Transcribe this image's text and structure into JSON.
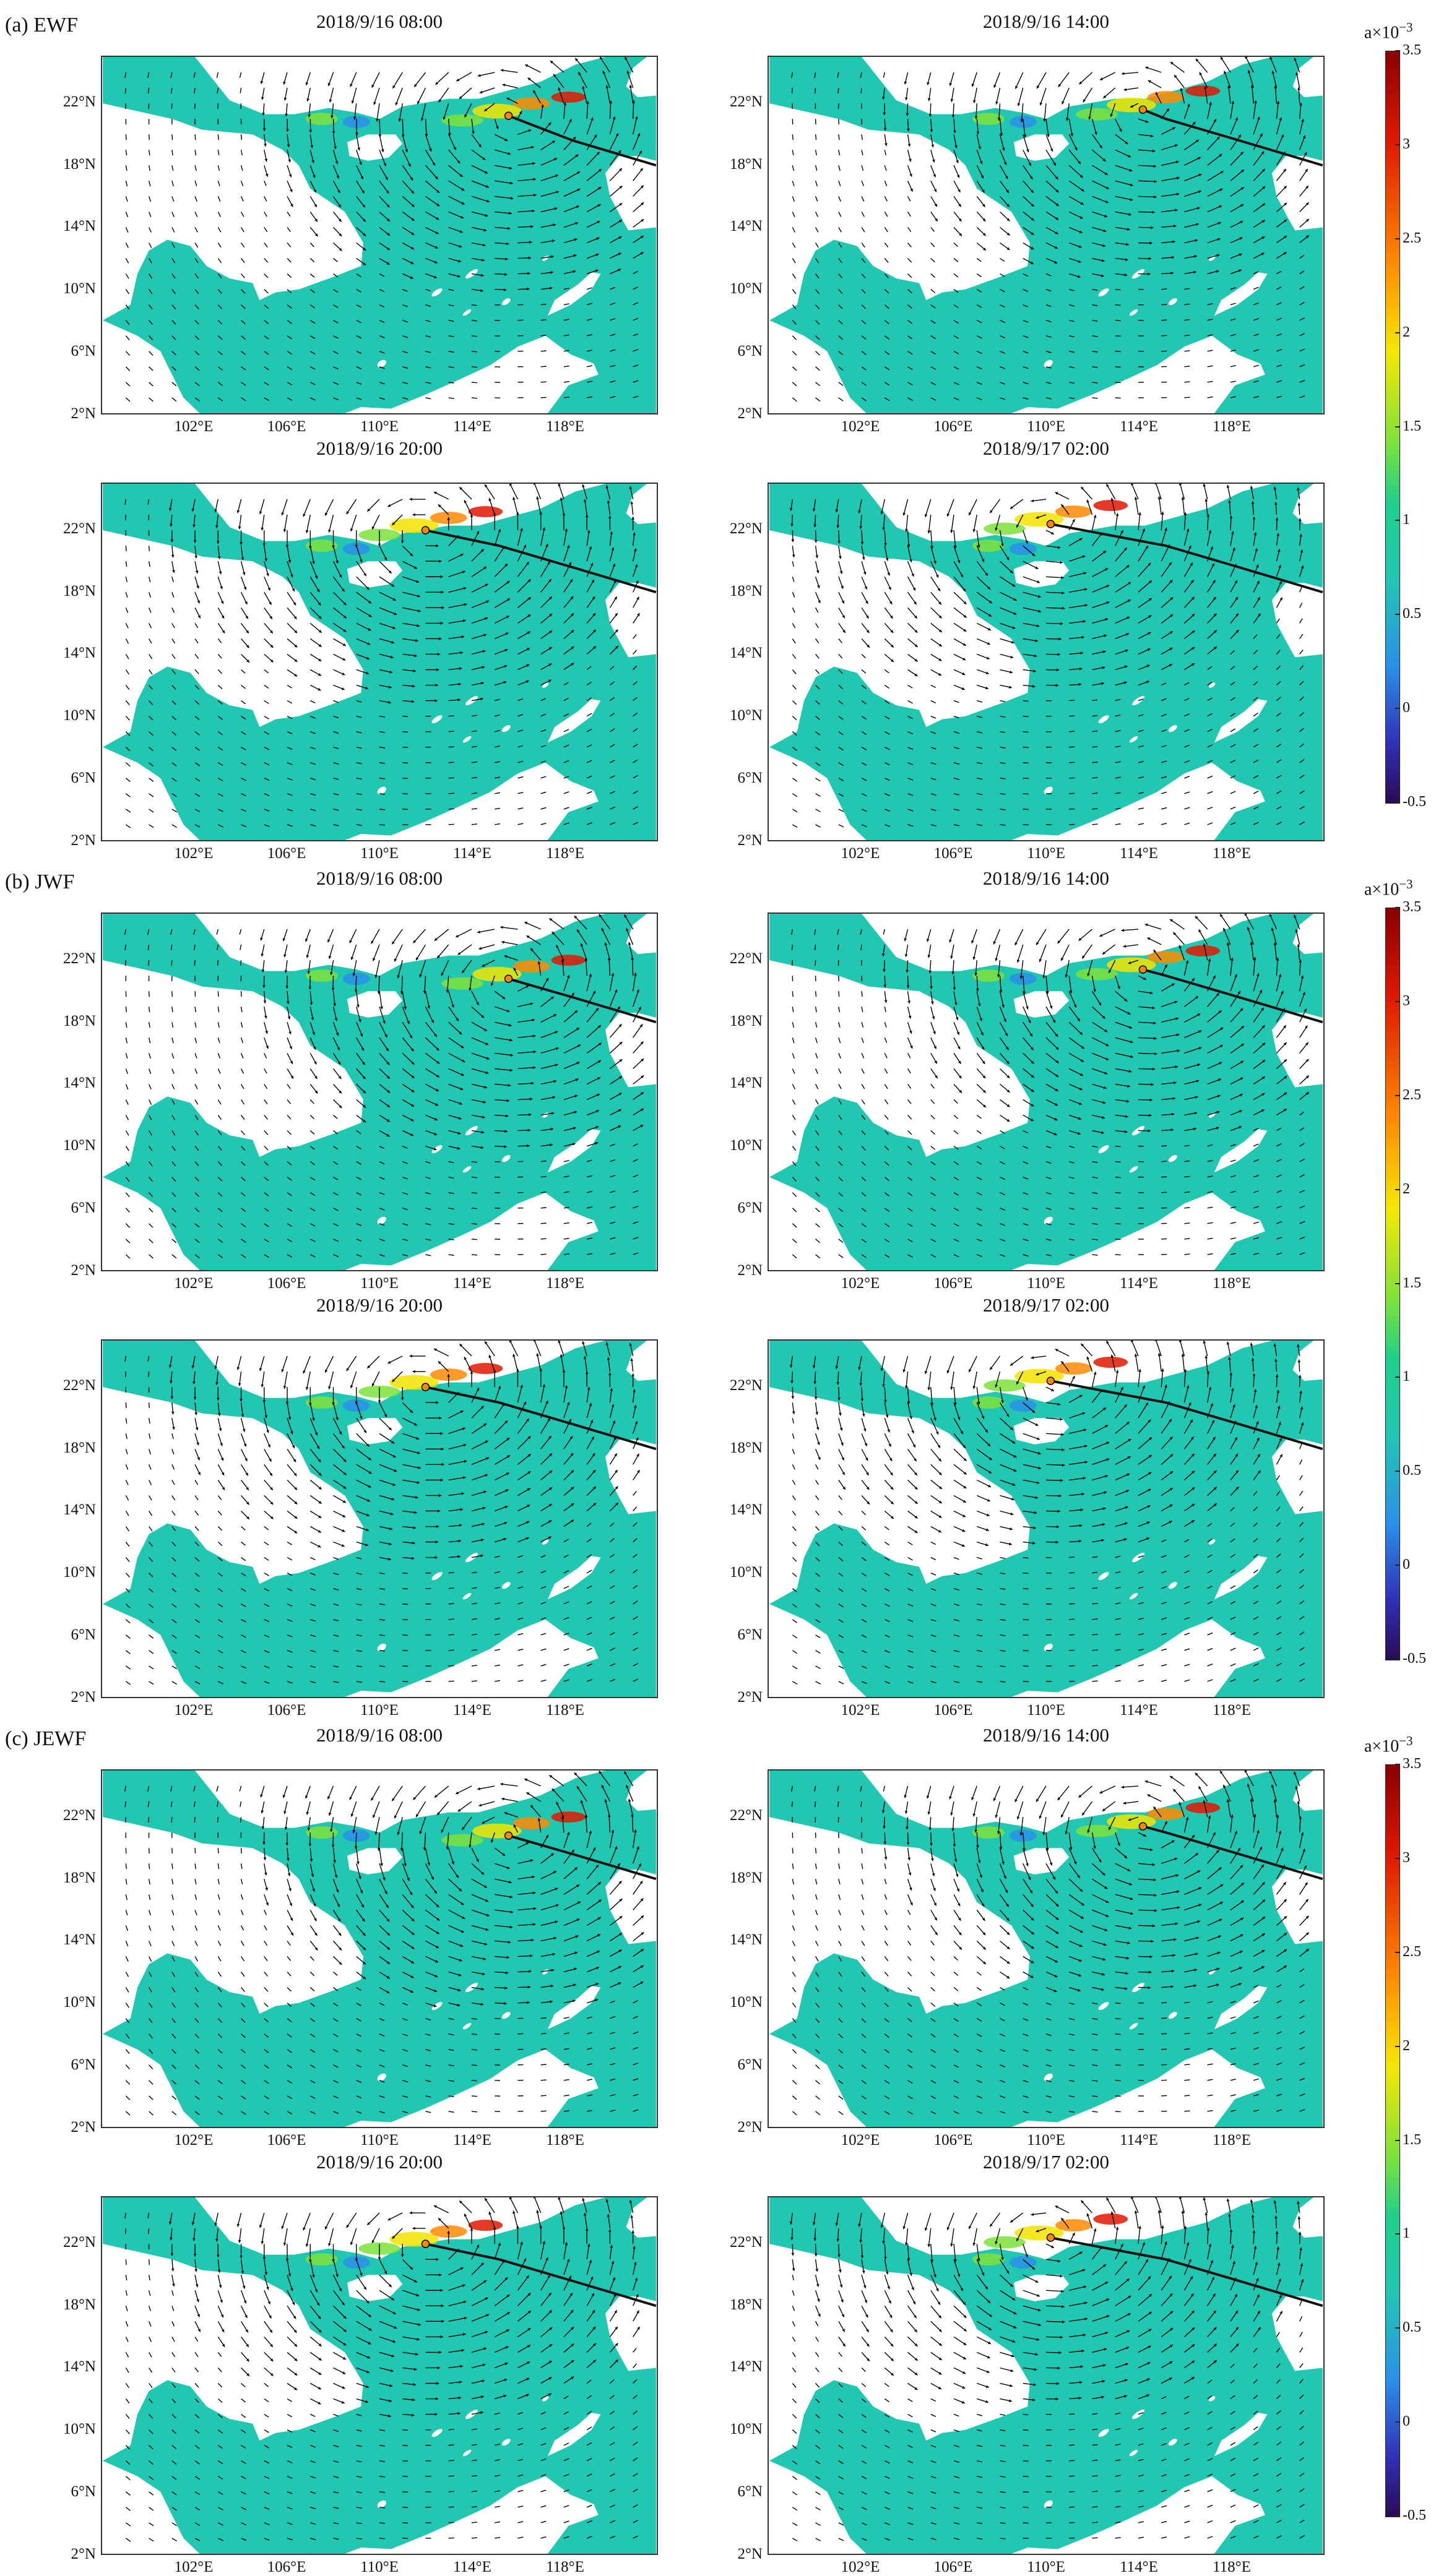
{
  "groups": [
    {
      "label": "(a) EWF",
      "panels": [
        {
          "title": "2018/9/16 08:00",
          "storm": [
            115.6,
            21.2
          ]
        },
        {
          "title": "2018/9/16 14:00",
          "storm": [
            114.2,
            21.6
          ]
        },
        {
          "title": "2018/9/16 20:00",
          "storm": [
            112.0,
            22.0
          ]
        },
        {
          "title": "2018/9/17 02:00",
          "storm": [
            110.2,
            22.4
          ]
        }
      ]
    },
    {
      "label": "(b) JWF",
      "panels": [
        {
          "title": "2018/9/16 08:00",
          "storm": [
            115.6,
            20.8
          ]
        },
        {
          "title": "2018/9/16 14:00",
          "storm": [
            114.2,
            21.4
          ]
        },
        {
          "title": "2018/9/16 20:00",
          "storm": [
            112.0,
            22.0
          ]
        },
        {
          "title": "2018/9/17 02:00",
          "storm": [
            110.2,
            22.4
          ]
        }
      ]
    },
    {
      "label": "(c) JEWF",
      "panels": [
        {
          "title": "2018/9/16 08:00",
          "storm": [
            115.6,
            20.8
          ]
        },
        {
          "title": "2018/9/16 14:00",
          "storm": [
            114.2,
            21.4
          ]
        },
        {
          "title": "2018/9/16 20:00",
          "storm": [
            112.0,
            22.0
          ]
        },
        {
          "title": "2018/9/17 02:00",
          "storm": [
            110.2,
            22.4
          ]
        }
      ]
    }
  ],
  "lat_ticks": [
    "22°N",
    "18°N",
    "14°N",
    "10°N",
    "6°N",
    "2°N"
  ],
  "lon_ticks": [
    "102°E",
    "106°E",
    "110°E",
    "114°E",
    "118°E"
  ],
  "colorbar": {
    "unit": "a×10",
    "unit_exponent": "−3",
    "ticks": [
      "3.5",
      "3",
      "2.5",
      "2",
      "1.5",
      "1",
      "0.5",
      "0",
      "-0.5"
    ],
    "range": [
      -0.5,
      3.5
    ]
  },
  "colors": {
    "sea": "#22c7b2",
    "land": "#ffffff",
    "track": "#111111"
  }
}
